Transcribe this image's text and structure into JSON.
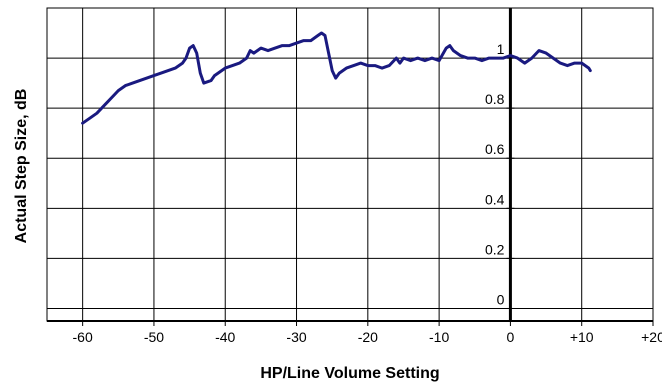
{
  "chart_data": {
    "type": "line",
    "title": "",
    "xlabel": "HP/Line Volume Setting",
    "ylabel": "Actual Step Size, dB",
    "xlim": [
      -65,
      20
    ],
    "ylim": [
      -0.05,
      1.2
    ],
    "grid": true,
    "legend": "none",
    "x_ticks": [
      {
        "value": -60,
        "label": "-60"
      },
      {
        "value": -50,
        "label": "-50"
      },
      {
        "value": -40,
        "label": "-40"
      },
      {
        "value": -30,
        "label": "-30"
      },
      {
        "value": -20,
        "label": "-20"
      },
      {
        "value": -10,
        "label": "-10"
      },
      {
        "value": 0,
        "label": "0"
      },
      {
        "value": 10,
        "label": "+10"
      },
      {
        "value": 20,
        "label": "+20"
      }
    ],
    "y_ticks": [
      {
        "value": 0,
        "label": "0"
      },
      {
        "value": 0.2,
        "label": "0.2"
      },
      {
        "value": 0.4,
        "label": "0.4"
      },
      {
        "value": 0.6,
        "label": "0.6"
      },
      {
        "value": 0.8,
        "label": "0.8"
      },
      {
        "value": 1,
        "label": "1"
      }
    ],
    "series": [
      {
        "color": "#1a1a80",
        "x": [
          -60,
          -59,
          -58,
          -57,
          -56,
          -55,
          -54,
          -53,
          -52,
          -51,
          -50,
          -49,
          -48,
          -47,
          -46,
          -45.5,
          -45,
          -44.5,
          -44,
          -43.5,
          -43,
          -42,
          -41.5,
          -41,
          -40,
          -39,
          -38,
          -37,
          -36.5,
          -36,
          -35,
          -34,
          -33,
          -32,
          -31,
          -30,
          -29,
          -28,
          -27,
          -26.5,
          -26,
          -25.5,
          -25,
          -24.5,
          -24,
          -23,
          -22,
          -21,
          -20,
          -19,
          -18,
          -17,
          -16,
          -15.5,
          -15,
          -14,
          -13,
          -12,
          -11,
          -10,
          -9,
          -8.5,
          -8,
          -7,
          -6,
          -5,
          -4,
          -3,
          -2,
          -1,
          0,
          1,
          2,
          3,
          4,
          5,
          6,
          7,
          8,
          9,
          10,
          11,
          11.2
        ],
        "y": [
          0.74,
          0.76,
          0.78,
          0.81,
          0.84,
          0.87,
          0.89,
          0.9,
          0.91,
          0.92,
          0.93,
          0.94,
          0.95,
          0.96,
          0.98,
          1.0,
          1.04,
          1.05,
          1.02,
          0.94,
          0.9,
          0.91,
          0.93,
          0.94,
          0.96,
          0.97,
          0.98,
          1.0,
          1.03,
          1.02,
          1.04,
          1.03,
          1.04,
          1.05,
          1.05,
          1.06,
          1.07,
          1.07,
          1.09,
          1.1,
          1.09,
          1.02,
          0.95,
          0.92,
          0.94,
          0.96,
          0.97,
          0.98,
          0.97,
          0.97,
          0.96,
          0.97,
          1.0,
          0.98,
          1.0,
          0.99,
          1.0,
          0.99,
          1.0,
          0.99,
          1.04,
          1.05,
          1.03,
          1.01,
          1.0,
          1.0,
          0.99,
          1.0,
          1.0,
          1.0,
          1.01,
          1.0,
          0.98,
          1.0,
          1.03,
          1.02,
          1.0,
          0.98,
          0.97,
          0.98,
          0.98,
          0.96,
          0.95
        ]
      }
    ]
  }
}
